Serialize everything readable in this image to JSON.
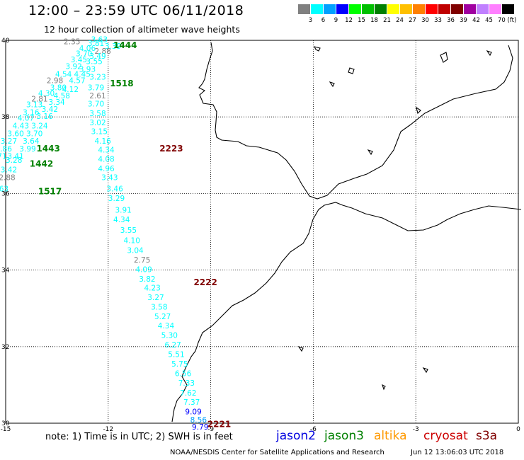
{
  "header": {
    "title": "12:00 – 23:59 UTC 06/11/2018",
    "subtitle": "12 hour collection of altimeter wave heights"
  },
  "color_scale": {
    "labels": [
      "3",
      "6",
      "9",
      "12",
      "15",
      "18",
      "21",
      "24",
      "27",
      "30",
      "33",
      "36",
      "39",
      "42",
      "45",
      "70 (ft)"
    ],
    "colors": [
      "#808080",
      "#00ffff",
      "#00a0ff",
      "#0000ff",
      "#00ff00",
      "#00c000",
      "#008000",
      "#ffff00",
      "#ffc000",
      "#ff8000",
      "#ff0000",
      "#c00000",
      "#800000",
      "#a000a0",
      "#c080ff",
      "#ff80ff",
      "#000000"
    ]
  },
  "axes": {
    "x_ticks": [
      "-15",
      "-12",
      "-9",
      "-6",
      "-3",
      "0"
    ],
    "y_ticks": [
      "40",
      "38",
      "36",
      "34",
      "32",
      "30"
    ]
  },
  "time_labels": [
    {
      "text": "1444",
      "color": "#008000",
      "lon": -11.85,
      "lat": 39.8
    },
    {
      "text": "1518",
      "color": "#008000",
      "lon": -11.95,
      "lat": 38.8
    },
    {
      "text": "1443",
      "color": "#008000",
      "lon": -14.1,
      "lat": 37.1
    },
    {
      "text": "1442",
      "color": "#008000",
      "lon": -14.3,
      "lat": 36.7
    },
    {
      "text": "1517",
      "color": "#008000",
      "lon": -14.05,
      "lat": 35.98
    },
    {
      "text": "2223",
      "color": "#800000",
      "lon": -10.5,
      "lat": 37.1
    },
    {
      "text": "2222",
      "color": "#800000",
      "lon": -9.5,
      "lat": 33.6
    },
    {
      "text": "2221",
      "color": "#800000",
      "lon": -9.1,
      "lat": 29.9
    }
  ],
  "tracks": [
    {
      "name": "jason3 NW",
      "points": [
        {
          "v": "3.63",
          "c": "#00ffff",
          "lon": -12.5,
          "lat": 39.95
        },
        {
          "v": "3.81",
          "c": "#00ffff",
          "lon": -12.6,
          "lat": 39.85
        },
        {
          "v": "3.39",
          "c": "#00ffff",
          "lon": -12.1,
          "lat": 39.78
        },
        {
          "v": "2.35",
          "c": "#808080",
          "lon": -13.3,
          "lat": 39.9
        },
        {
          "v": "4.06",
          "c": "#00ffff",
          "lon": -12.85,
          "lat": 39.72
        },
        {
          "v": "2.88",
          "c": "#808080",
          "lon": -12.4,
          "lat": 39.65
        },
        {
          "v": "3.70",
          "c": "#00ffff",
          "lon": -12.95,
          "lat": 39.58
        },
        {
          "v": "3.49",
          "c": "#00ffff",
          "lon": -12.55,
          "lat": 39.52
        },
        {
          "v": "3.45",
          "c": "#00ffff",
          "lon": -13.1,
          "lat": 39.43
        },
        {
          "v": "3.55",
          "c": "#00ffff",
          "lon": -12.65,
          "lat": 39.38
        },
        {
          "v": "3.92",
          "c": "#00ffff",
          "lon": -13.25,
          "lat": 39.25
        },
        {
          "v": "3.93",
          "c": "#00ffff",
          "lon": -12.85,
          "lat": 39.18
        },
        {
          "v": "4.54",
          "c": "#00ffff",
          "lon": -13.55,
          "lat": 39.05
        },
        {
          "v": "4.45",
          "c": "#00ffff",
          "lon": -13.0,
          "lat": 39.05
        },
        {
          "v": "3.23",
          "c": "#00ffff",
          "lon": -12.55,
          "lat": 38.97
        },
        {
          "v": "2.98",
          "c": "#808080",
          "lon": -13.8,
          "lat": 38.88
        },
        {
          "v": "4.57",
          "c": "#00ffff",
          "lon": -13.15,
          "lat": 38.88
        },
        {
          "v": "3.80",
          "c": "#00ffff",
          "lon": -13.7,
          "lat": 38.7
        },
        {
          "v": "3.79",
          "c": "#00ffff",
          "lon": -12.6,
          "lat": 38.7
        },
        {
          "v": "4.12",
          "c": "#00ffff",
          "lon": -13.35,
          "lat": 38.65
        },
        {
          "v": "4.30",
          "c": "#00ffff",
          "lon": -14.05,
          "lat": 38.55
        },
        {
          "v": "4.58",
          "c": "#00ffff",
          "lon": -13.6,
          "lat": 38.48
        },
        {
          "v": "2.61",
          "c": "#808080",
          "lon": -12.55,
          "lat": 38.48
        },
        {
          "v": "2.81",
          "c": "#808080",
          "lon": -14.25,
          "lat": 38.4
        },
        {
          "v": "3.34",
          "c": "#00ffff",
          "lon": -13.75,
          "lat": 38.32
        },
        {
          "v": "3.70",
          "c": "#00ffff",
          "lon": -12.6,
          "lat": 38.27
        },
        {
          "v": "3.13",
          "c": "#00ffff",
          "lon": -14.4,
          "lat": 38.25
        },
        {
          "v": "3.42",
          "c": "#00ffff",
          "lon": -13.95,
          "lat": 38.13
        },
        {
          "v": "3.58",
          "c": "#00ffff",
          "lon": -12.55,
          "lat": 38.02
        },
        {
          "v": "3.16",
          "c": "#00ffff",
          "lon": -14.5,
          "lat": 38.05
        },
        {
          "v": "3.16",
          "c": "#00ffff",
          "lon": -14.1,
          "lat": 37.95
        },
        {
          "v": "4.07",
          "c": "#00ffff",
          "lon": -14.65,
          "lat": 37.9
        },
        {
          "v": "3.02",
          "c": "#00ffff",
          "lon": -12.55,
          "lat": 37.78
        },
        {
          "v": "4.43",
          "c": "#00ffff",
          "lon": -14.8,
          "lat": 37.7
        },
        {
          "v": "3.24",
          "c": "#00ffff",
          "lon": -14.25,
          "lat": 37.7
        },
        {
          "v": "3.60",
          "c": "#00ffff",
          "lon": -14.95,
          "lat": 37.5
        },
        {
          "v": "3.70",
          "c": "#00ffff",
          "lon": -14.4,
          "lat": 37.5
        },
        {
          "v": "3.15",
          "c": "#00ffff",
          "lon": -12.5,
          "lat": 37.55
        },
        {
          "v": "3.27",
          "c": "#00ffff",
          "lon": -15.15,
          "lat": 37.3
        },
        {
          "v": "3.64",
          "c": "#00ffff",
          "lon": -14.5,
          "lat": 37.3
        },
        {
          "v": "4.16",
          "c": "#00ffff",
          "lon": -12.4,
          "lat": 37.3
        },
        {
          "v": "3.86",
          "c": "#00ffff",
          "lon": -15.3,
          "lat": 37.1
        },
        {
          "v": "3.99",
          "c": "#00ffff",
          "lon": -14.6,
          "lat": 37.1
        },
        {
          "v": "4.34",
          "c": "#00ffff",
          "lon": -12.3,
          "lat": 37.07
        },
        {
          "v": "3.71",
          "c": "#00ffff",
          "lon": -15.45,
          "lat": 36.9
        },
        {
          "v": "3.41",
          "c": "#00ffff",
          "lon": -14.95,
          "lat": 36.9
        },
        {
          "v": "4.08",
          "c": "#00ffff",
          "lon": -12.3,
          "lat": 36.83
        },
        {
          "v": "3.28",
          "c": "#00ffff",
          "lon": -15.0,
          "lat": 36.8
        },
        {
          "v": "3.42",
          "c": "#00ffff",
          "lon": -15.15,
          "lat": 36.55
        },
        {
          "v": "4.96",
          "c": "#00ffff",
          "lon": -12.3,
          "lat": 36.58
        },
        {
          "v": "2.88",
          "c": "#808080",
          "lon": -15.2,
          "lat": 36.35
        },
        {
          "v": "3.43",
          "c": "#00ffff",
          "lon": -12.2,
          "lat": 36.35
        },
        {
          "v": "3.63",
          "c": "#00ffff",
          "lon": -15.4,
          "lat": 36.05
        },
        {
          "v": "3.46",
          "c": "#00ffff",
          "lon": -12.05,
          "lat": 36.05
        }
      ]
    },
    {
      "name": "cryosat SE",
      "points": [
        {
          "v": "3.29",
          "c": "#00ffff",
          "lon": -12.0,
          "lat": 35.8
        },
        {
          "v": "3.91",
          "c": "#00ffff",
          "lon": -11.8,
          "lat": 35.5
        },
        {
          "v": "4.34",
          "c": "#00ffff",
          "lon": -11.85,
          "lat": 35.25
        },
        {
          "v": "3.55",
          "c": "#00ffff",
          "lon": -11.65,
          "lat": 34.97
        },
        {
          "v": "4.10",
          "c": "#00ffff",
          "lon": -11.55,
          "lat": 34.7
        },
        {
          "v": "3.04",
          "c": "#00ffff",
          "lon": -11.45,
          "lat": 34.45
        },
        {
          "v": "2.75",
          "c": "#808080",
          "lon": -11.25,
          "lat": 34.2
        },
        {
          "v": "4.09",
          "c": "#00ffff",
          "lon": -11.2,
          "lat": 33.95
        },
        {
          "v": "3.82",
          "c": "#00ffff",
          "lon": -11.1,
          "lat": 33.7
        },
        {
          "v": "4.23",
          "c": "#00ffff",
          "lon": -10.95,
          "lat": 33.47
        },
        {
          "v": "3.27",
          "c": "#00ffff",
          "lon": -10.85,
          "lat": 33.22
        },
        {
          "v": "3.58",
          "c": "#00ffff",
          "lon": -10.75,
          "lat": 32.97
        },
        {
          "v": "5.27",
          "c": "#00ffff",
          "lon": -10.65,
          "lat": 32.72
        },
        {
          "v": "4.34",
          "c": "#00ffff",
          "lon": -10.55,
          "lat": 32.48
        },
        {
          "v": "5.30",
          "c": "#00ffff",
          "lon": -10.45,
          "lat": 32.23
        },
        {
          "v": "6.27",
          "c": "#00ffff",
          "lon": -10.35,
          "lat": 31.98
        },
        {
          "v": "5.51",
          "c": "#00ffff",
          "lon": -10.25,
          "lat": 31.73
        },
        {
          "v": "5.75",
          "c": "#00ffff",
          "lon": -10.15,
          "lat": 31.48
        },
        {
          "v": "6.56",
          "c": "#00ffff",
          "lon": -10.05,
          "lat": 31.23
        },
        {
          "v": "7.33",
          "c": "#00ffff",
          "lon": -9.95,
          "lat": 30.98
        },
        {
          "v": "7.62",
          "c": "#00ffff",
          "lon": -9.9,
          "lat": 30.72
        },
        {
          "v": "7.37",
          "c": "#00ffff",
          "lon": -9.8,
          "lat": 30.48
        },
        {
          "v": "9.09",
          "c": "#0000ff",
          "lon": -9.75,
          "lat": 30.23
        },
        {
          "v": "8.56",
          "c": "#00a0ff",
          "lon": -9.6,
          "lat": 30.02
        },
        {
          "v": "9.79",
          "c": "#0000ff",
          "lon": -9.55,
          "lat": 29.83
        }
      ]
    }
  ],
  "footer": {
    "note": "note:  1) Time is in UTC;  2) SWH is in feet",
    "legend": [
      {
        "label": "jason2",
        "color": "#0000e0"
      },
      {
        "label": "jason3",
        "color": "#008000"
      },
      {
        "label": "altika",
        "color": "#ff9900"
      },
      {
        "label": "cryosat",
        "color": "#cc0000"
      },
      {
        "label": "s3a",
        "color": "#800000"
      }
    ],
    "credit": "NOAA/NESDIS Center for Satellite Applications and Research",
    "timestamp": "Jun 12 13:06:03 UTC 2018"
  }
}
